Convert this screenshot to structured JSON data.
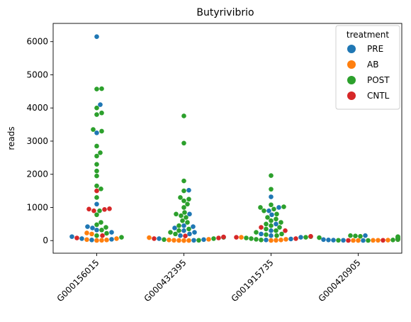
{
  "chart_data": {
    "type": "scatter",
    "title": "Butyrivibrio",
    "xlabel": "",
    "ylabel": "reads",
    "categories": [
      "G000156015",
      "G000432395",
      "G001915735",
      "G000420905"
    ],
    "ylim": [
      -380,
      6550
    ],
    "yticks": [
      0,
      1000,
      2000,
      3000,
      4000,
      5000,
      6000
    ],
    "grid": false,
    "legend": {
      "title": "treatment",
      "placement": "top-right",
      "entries": [
        "PRE",
        "AB",
        "POST",
        "CNTL"
      ]
    },
    "colors": {
      "PRE": "#1f77b4",
      "AB": "#ff7f0e",
      "POST": "#2ca02c",
      "CNTL": "#d62728"
    },
    "series": [
      {
        "name": "PRE",
        "values": [
          [
            6150,
            4100,
            3250,
            1100,
            420,
            380,
            320,
            250,
            120,
            60,
            40,
            20
          ],
          [
            1520,
            800,
            450,
            420,
            380,
            300,
            250,
            200,
            150,
            100,
            60,
            30,
            10
          ],
          [
            1320,
            1000,
            900,
            780,
            500,
            300,
            200,
            150,
            100,
            50,
            20
          ],
          [
            150,
            60,
            40,
            30,
            20,
            15,
            10,
            5
          ]
        ]
      },
      {
        "name": "AB",
        "values": [
          [
            230,
            200,
            60,
            30,
            20,
            10,
            5
          ],
          [
            90,
            40,
            20,
            10,
            5,
            3,
            2
          ],
          [
            100,
            40,
            20,
            10,
            5
          ],
          [
            60,
            30,
            15,
            10,
            8,
            5,
            3
          ]
        ]
      },
      {
        "name": "POST",
        "values": [
          [
            4580,
            4570,
            4000,
            3850,
            3800,
            3350,
            3300,
            2850,
            2650,
            2550,
            2300,
            2100,
            1950,
            1650,
            1560,
            1300,
            900,
            780,
            550,
            480,
            400,
            320,
            220,
            150,
            100
          ],
          [
            3760,
            2940,
            1800,
            1500,
            1300,
            1250,
            1200,
            1100,
            1000,
            850,
            800,
            750,
            700,
            600,
            550,
            450,
            350,
            300,
            250,
            200,
            100,
            60,
            30,
            10
          ],
          [
            1960,
            1550,
            1080,
            1020,
            1000,
            950,
            900,
            800,
            700,
            650,
            600,
            550,
            500,
            450,
            400,
            350,
            300,
            250,
            200,
            180,
            150,
            120,
            100,
            80,
            60,
            40,
            20
          ],
          [
            150,
            140,
            130,
            120,
            110,
            100,
            90,
            80,
            70,
            60,
            50,
            40,
            30,
            20,
            10,
            5
          ]
        ]
      },
      {
        "name": "CNTL",
        "values": [
          [
            1500,
            960,
            950,
            940,
            900,
            150,
            80
          ],
          [
            140,
            110,
            80,
            60
          ],
          [
            400,
            300,
            130,
            100,
            60
          ],
          [
            10,
            5
          ]
        ]
      }
    ]
  }
}
